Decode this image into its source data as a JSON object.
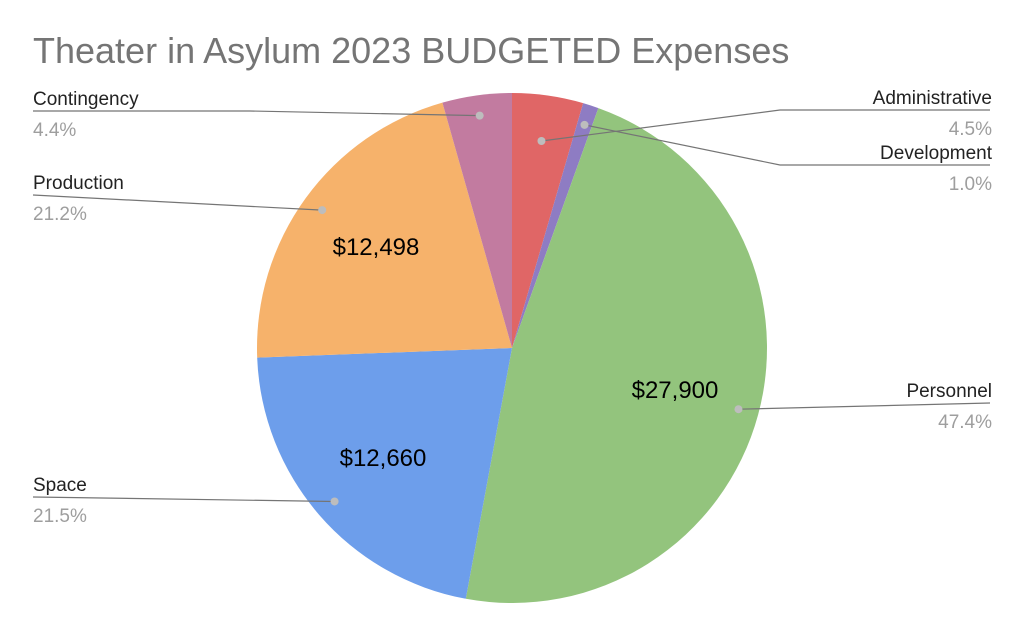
{
  "chart_data": {
    "type": "pie",
    "title": "Theater in Asylum 2023 BUDGETED Expenses",
    "slices": [
      {
        "label": "Administrative",
        "percent_label": "4.5%",
        "value_label": "",
        "percent": 4.5,
        "color": "#e06666"
      },
      {
        "label": "Development",
        "percent_label": "1.0%",
        "value_label": "",
        "percent": 1.0,
        "color": "#8e7cc3"
      },
      {
        "label": "Personnel",
        "percent_label": "47.4%",
        "value_label": "$27,900",
        "percent": 47.4,
        "color": "#93c47d"
      },
      {
        "label": "Space",
        "percent_label": "21.5%",
        "value_label": "$12,660",
        "percent": 21.5,
        "color": "#6d9eeb"
      },
      {
        "label": "Production",
        "percent_label": "21.2%",
        "value_label": "$12,498",
        "percent": 21.2,
        "color": "#f6b26b"
      },
      {
        "label": "Contingency",
        "percent_label": "4.4%",
        "value_label": "",
        "percent": 4.4,
        "color": "#c27ba0"
      }
    ],
    "start": "12 o'clock",
    "direction": "clockwise"
  }
}
